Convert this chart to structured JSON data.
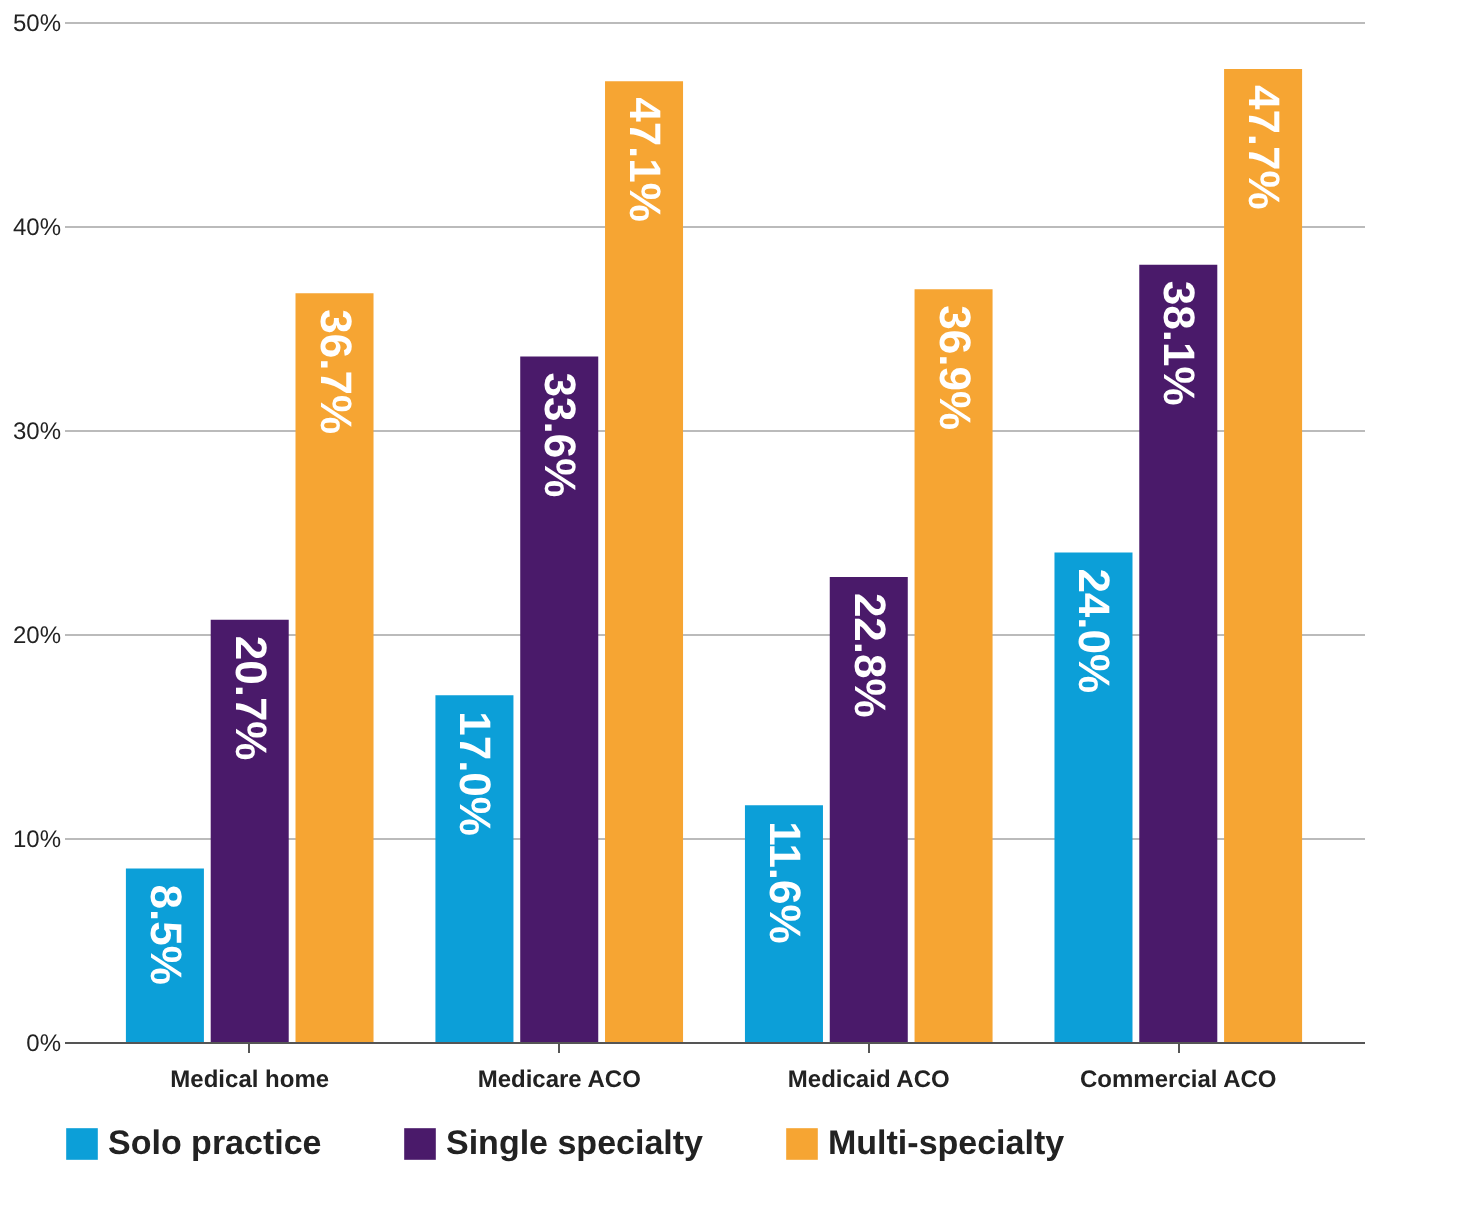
{
  "chart_data": {
    "type": "bar",
    "categories": [
      "Medical home",
      "Medicare ACO",
      "Medicaid ACO",
      "Commercial ACO"
    ],
    "series": [
      {
        "name": "Solo practice",
        "color": "#0c9fd8",
        "values": [
          8.5,
          17.0,
          11.6,
          24.0
        ],
        "value_labels": [
          "8.5%",
          "17.0%",
          "11.6%",
          "24.0%"
        ]
      },
      {
        "name": "Single specialty",
        "color": "#4a1a6a",
        "values": [
          20.7,
          33.6,
          22.8,
          38.1
        ],
        "value_labels": [
          "20.7%",
          "33.6%",
          "22.8%",
          "38.1%"
        ]
      },
      {
        "name": "Multi-specialty",
        "color": "#f6a533",
        "values": [
          36.7,
          47.1,
          36.9,
          47.7
        ],
        "value_labels": [
          "36.7%",
          "47.1%",
          "36.9%",
          "47.7%"
        ]
      }
    ],
    "ylim": [
      0,
      50
    ],
    "yticks": [
      {
        "value": 0,
        "label": "0%"
      },
      {
        "value": 10,
        "label": "10%"
      },
      {
        "value": 20,
        "label": "20%"
      },
      {
        "value": 30,
        "label": "30%"
      },
      {
        "value": 40,
        "label": "40%"
      },
      {
        "value": 50,
        "label": "50%"
      }
    ],
    "grid": "y",
    "legend": "bottom"
  }
}
